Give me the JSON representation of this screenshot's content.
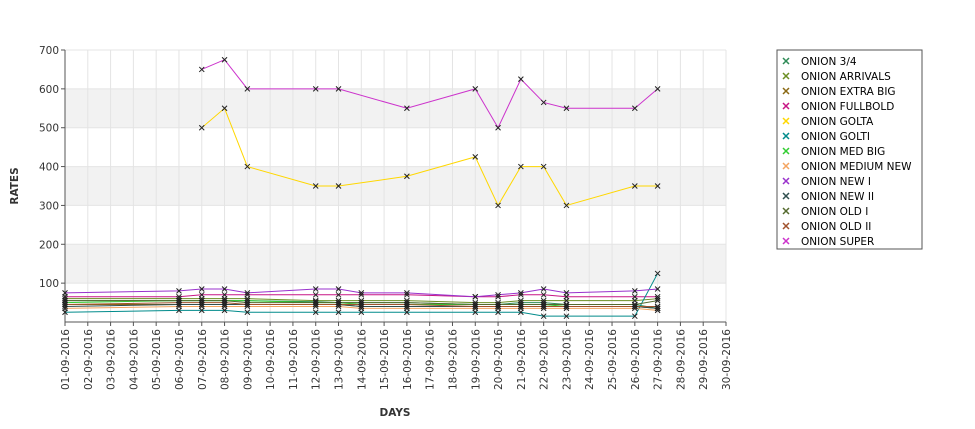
{
  "chart_data": {
    "type": "line",
    "xlabel": "DAYS",
    "ylabel": "RATES",
    "ylim": [
      0,
      700
    ],
    "yticks": [
      100,
      200,
      300,
      400,
      500,
      600,
      700
    ],
    "grid": true,
    "legend_position": "right",
    "x": [
      "01-09-2016",
      "02-09-2016",
      "03-09-2016",
      "04-09-2016",
      "05-09-2016",
      "06-09-2016",
      "07-09-2016",
      "08-09-2016",
      "09-09-2016",
      "10-09-2016",
      "11-09-2016",
      "12-09-2016",
      "13-09-2016",
      "14-09-2016",
      "15-09-2016",
      "16-09-2016",
      "17-09-2016",
      "18-09-2016",
      "19-09-2016",
      "20-09-2016",
      "21-09-2016",
      "22-09-2016",
      "23-09-2016",
      "24-09-2016",
      "25-09-2016",
      "26-09-2016",
      "27-09-2016",
      "28-09-2016",
      "29-09-2016",
      "30-09-2016"
    ],
    "series": [
      {
        "name": "ONION 3/4",
        "color": "#2e8b57",
        "points": [
          [
            "01-09-2016",
            55
          ],
          [
            "06-09-2016",
            55
          ],
          [
            "07-09-2016",
            55
          ],
          [
            "08-09-2016",
            55
          ],
          [
            "09-09-2016",
            55
          ],
          [
            "12-09-2016",
            52
          ],
          [
            "13-09-2016",
            50
          ],
          [
            "14-09-2016",
            50
          ],
          [
            "16-09-2016",
            50
          ],
          [
            "19-09-2016",
            45
          ],
          [
            "20-09-2016",
            45
          ],
          [
            "21-09-2016",
            50
          ],
          [
            "22-09-2016",
            50
          ],
          [
            "23-09-2016",
            45
          ],
          [
            "26-09-2016",
            45
          ],
          [
            "27-09-2016",
            35
          ]
        ]
      },
      {
        "name": "ONION ARRIVALS",
        "color": "#6b8e23",
        "points": [
          [
            "01-09-2016",
            60
          ],
          [
            "06-09-2016",
            60
          ],
          [
            "07-09-2016",
            60
          ],
          [
            "08-09-2016",
            60
          ],
          [
            "09-09-2016",
            60
          ],
          [
            "12-09-2016",
            55
          ],
          [
            "13-09-2016",
            55
          ],
          [
            "14-09-2016",
            55
          ],
          [
            "16-09-2016",
            55
          ],
          [
            "19-09-2016",
            50
          ],
          [
            "20-09-2016",
            50
          ],
          [
            "21-09-2016",
            55
          ],
          [
            "22-09-2016",
            55
          ],
          [
            "23-09-2016",
            55
          ],
          [
            "26-09-2016",
            55
          ],
          [
            "27-09-2016",
            60
          ]
        ]
      },
      {
        "name": "ONION EXTRA BIG",
        "color": "#8b6914",
        "points": [
          [
            "01-09-2016",
            45
          ],
          [
            "06-09-2016",
            45
          ],
          [
            "07-09-2016",
            45
          ],
          [
            "08-09-2016",
            45
          ],
          [
            "09-09-2016",
            45
          ],
          [
            "12-09-2016",
            45
          ],
          [
            "13-09-2016",
            45
          ],
          [
            "14-09-2016",
            40
          ],
          [
            "16-09-2016",
            40
          ],
          [
            "19-09-2016",
            40
          ],
          [
            "20-09-2016",
            40
          ],
          [
            "21-09-2016",
            40
          ],
          [
            "22-09-2016",
            40
          ],
          [
            "23-09-2016",
            40
          ],
          [
            "26-09-2016",
            40
          ],
          [
            "27-09-2016",
            35
          ]
        ]
      },
      {
        "name": "ONION FULLBOLD",
        "color": "#c71585",
        "points": [
          [
            "01-09-2016",
            65
          ],
          [
            "06-09-2016",
            65
          ],
          [
            "07-09-2016",
            70
          ],
          [
            "08-09-2016",
            70
          ],
          [
            "09-09-2016",
            70
          ],
          [
            "12-09-2016",
            70
          ],
          [
            "13-09-2016",
            70
          ],
          [
            "14-09-2016",
            70
          ],
          [
            "16-09-2016",
            70
          ],
          [
            "19-09-2016",
            65
          ],
          [
            "20-09-2016",
            65
          ],
          [
            "21-09-2016",
            70
          ],
          [
            "22-09-2016",
            70
          ],
          [
            "23-09-2016",
            65
          ],
          [
            "26-09-2016",
            65
          ],
          [
            "27-09-2016",
            65
          ]
        ]
      },
      {
        "name": "ONION GOLTA",
        "color": "#ffd700",
        "points": [
          [
            "07-09-2016",
            500
          ],
          [
            "08-09-2016",
            550
          ],
          [
            "09-09-2016",
            400
          ],
          [
            "12-09-2016",
            350
          ],
          [
            "13-09-2016",
            350
          ],
          [
            "16-09-2016",
            375
          ],
          [
            "19-09-2016",
            425
          ],
          [
            "20-09-2016",
            300
          ],
          [
            "21-09-2016",
            400
          ],
          [
            "22-09-2016",
            400
          ],
          [
            "23-09-2016",
            300
          ],
          [
            "26-09-2016",
            350
          ],
          [
            "27-09-2016",
            350
          ]
        ]
      },
      {
        "name": "ONION GOLTI",
        "color": "#008b8b",
        "points": [
          [
            "01-09-2016",
            25
          ],
          [
            "06-09-2016",
            30
          ],
          [
            "07-09-2016",
            30
          ],
          [
            "08-09-2016",
            30
          ],
          [
            "09-09-2016",
            25
          ],
          [
            "12-09-2016",
            25
          ],
          [
            "13-09-2016",
            25
          ],
          [
            "14-09-2016",
            25
          ],
          [
            "16-09-2016",
            25
          ],
          [
            "19-09-2016",
            25
          ],
          [
            "20-09-2016",
            25
          ],
          [
            "21-09-2016",
            25
          ],
          [
            "22-09-2016",
            15
          ],
          [
            "23-09-2016",
            15
          ],
          [
            "26-09-2016",
            15
          ],
          [
            "27-09-2016",
            125
          ]
        ]
      },
      {
        "name": "ONION MED BIG",
        "color": "#32cd32",
        "points": [
          [
            "01-09-2016",
            50
          ],
          [
            "06-09-2016",
            55
          ],
          [
            "07-09-2016",
            55
          ],
          [
            "08-09-2016",
            55
          ],
          [
            "09-09-2016",
            55
          ],
          [
            "12-09-2016",
            50
          ],
          [
            "13-09-2016",
            50
          ],
          [
            "14-09-2016",
            45
          ],
          [
            "16-09-2016",
            45
          ],
          [
            "19-09-2016",
            45
          ],
          [
            "20-09-2016",
            45
          ],
          [
            "21-09-2016",
            45
          ],
          [
            "22-09-2016",
            45
          ],
          [
            "23-09-2016",
            40
          ],
          [
            "26-09-2016",
            40
          ],
          [
            "27-09-2016",
            40
          ]
        ]
      },
      {
        "name": "ONION MEDIUM NEW",
        "color": "#f4a460",
        "points": [
          [
            "01-09-2016",
            35
          ],
          [
            "06-09-2016",
            40
          ],
          [
            "07-09-2016",
            40
          ],
          [
            "08-09-2016",
            40
          ],
          [
            "09-09-2016",
            40
          ],
          [
            "12-09-2016",
            40
          ],
          [
            "13-09-2016",
            40
          ],
          [
            "14-09-2016",
            35
          ],
          [
            "16-09-2016",
            35
          ],
          [
            "19-09-2016",
            35
          ],
          [
            "20-09-2016",
            35
          ],
          [
            "21-09-2016",
            35
          ],
          [
            "22-09-2016",
            35
          ],
          [
            "23-09-2016",
            35
          ],
          [
            "26-09-2016",
            35
          ],
          [
            "27-09-2016",
            30
          ]
        ]
      },
      {
        "name": "ONION NEW I",
        "color": "#9932cc",
        "points": [
          [
            "01-09-2016",
            75
          ],
          [
            "06-09-2016",
            80
          ],
          [
            "07-09-2016",
            85
          ],
          [
            "08-09-2016",
            85
          ],
          [
            "09-09-2016",
            75
          ],
          [
            "12-09-2016",
            85
          ],
          [
            "13-09-2016",
            85
          ],
          [
            "14-09-2016",
            75
          ],
          [
            "16-09-2016",
            75
          ],
          [
            "19-09-2016",
            65
          ],
          [
            "20-09-2016",
            70
          ],
          [
            "21-09-2016",
            75
          ],
          [
            "22-09-2016",
            85
          ],
          [
            "23-09-2016",
            75
          ],
          [
            "26-09-2016",
            80
          ],
          [
            "27-09-2016",
            85
          ]
        ]
      },
      {
        "name": "ONION NEW II",
        "color": "#2f4f4f",
        "points": [
          [
            "01-09-2016",
            40
          ],
          [
            "06-09-2016",
            45
          ],
          [
            "07-09-2016",
            45
          ],
          [
            "08-09-2016",
            45
          ],
          [
            "09-09-2016",
            45
          ],
          [
            "12-09-2016",
            45
          ],
          [
            "13-09-2016",
            45
          ],
          [
            "14-09-2016",
            40
          ],
          [
            "16-09-2016",
            40
          ],
          [
            "19-09-2016",
            40
          ],
          [
            "20-09-2016",
            40
          ],
          [
            "21-09-2016",
            40
          ],
          [
            "22-09-2016",
            40
          ],
          [
            "23-09-2016",
            40
          ],
          [
            "26-09-2016",
            40
          ],
          [
            "27-09-2016",
            35
          ]
        ]
      },
      {
        "name": "ONION OLD I",
        "color": "#556b2f",
        "points": [
          [
            "01-09-2016",
            55
          ],
          [
            "06-09-2016",
            55
          ],
          [
            "07-09-2016",
            55
          ],
          [
            "08-09-2016",
            55
          ],
          [
            "09-09-2016",
            50
          ],
          [
            "12-09-2016",
            50
          ],
          [
            "13-09-2016",
            50
          ],
          [
            "14-09-2016",
            50
          ],
          [
            "16-09-2016",
            50
          ],
          [
            "19-09-2016",
            45
          ],
          [
            "20-09-2016",
            45
          ],
          [
            "21-09-2016",
            45
          ],
          [
            "22-09-2016",
            45
          ],
          [
            "23-09-2016",
            45
          ],
          [
            "26-09-2016",
            45
          ],
          [
            "27-09-2016",
            55
          ]
        ]
      },
      {
        "name": "ONION OLD II",
        "color": "#a0522d",
        "points": [
          [
            "01-09-2016",
            45
          ],
          [
            "06-09-2016",
            50
          ],
          [
            "07-09-2016",
            50
          ],
          [
            "08-09-2016",
            50
          ],
          [
            "09-09-2016",
            45
          ],
          [
            "12-09-2016",
            45
          ],
          [
            "13-09-2016",
            45
          ],
          [
            "14-09-2016",
            45
          ],
          [
            "16-09-2016",
            45
          ],
          [
            "19-09-2016",
            40
          ],
          [
            "20-09-2016",
            40
          ],
          [
            "21-09-2016",
            40
          ],
          [
            "22-09-2016",
            40
          ],
          [
            "23-09-2016",
            40
          ],
          [
            "26-09-2016",
            40
          ],
          [
            "27-09-2016",
            40
          ]
        ]
      },
      {
        "name": "ONION SUPER",
        "color": "#cc33cc",
        "points": [
          [
            "07-09-2016",
            650
          ],
          [
            "08-09-2016",
            675
          ],
          [
            "09-09-2016",
            600
          ],
          [
            "12-09-2016",
            600
          ],
          [
            "13-09-2016",
            600
          ],
          [
            "16-09-2016",
            550
          ],
          [
            "19-09-2016",
            600
          ],
          [
            "20-09-2016",
            500
          ],
          [
            "21-09-2016",
            625
          ],
          [
            "22-09-2016",
            565
          ],
          [
            "23-09-2016",
            550
          ],
          [
            "26-09-2016",
            550
          ],
          [
            "27-09-2016",
            600
          ]
        ]
      }
    ]
  }
}
